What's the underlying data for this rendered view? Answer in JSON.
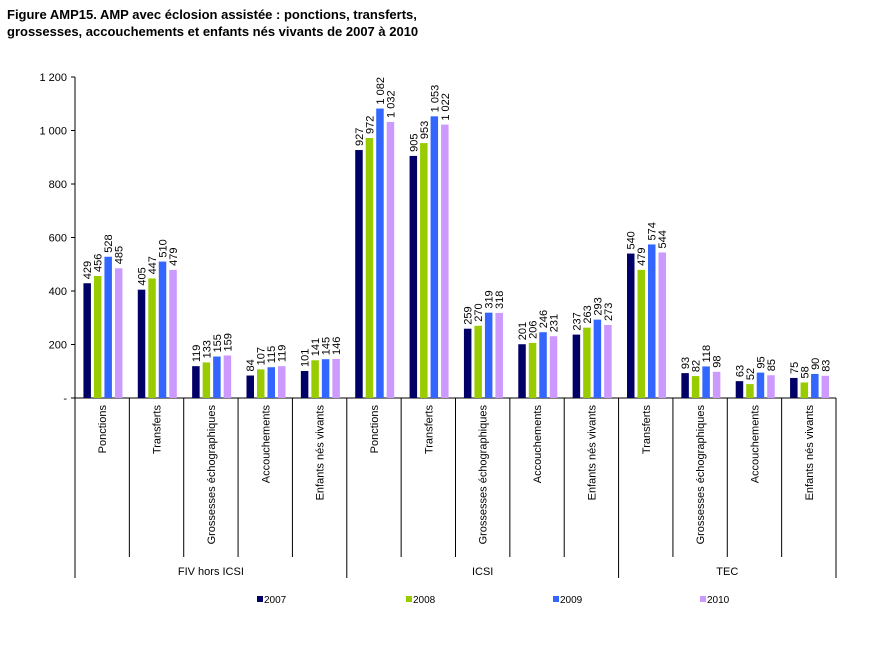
{
  "title_lines": [
    "Figure AMP15. AMP avec éclosion assistée : ponctions, transferts,",
    "grossesses, accouchements et enfants nés vivants de 2007 à 2010"
  ],
  "colors": {
    "2007": "#000066",
    "2008": "#99CC00",
    "2009": "#3366FF",
    "2010": "#CC99FF"
  },
  "chart_data": {
    "type": "bar",
    "title": "Figure AMP15. AMP avec éclosion assistée : ponctions, transferts, grossesses, accouchements et enfants nés vivants de 2007 à 2010",
    "xlabel": "",
    "ylabel": "",
    "ylim": [
      0,
      1200
    ],
    "yticks": [
      {
        "value": 0,
        "label": "-"
      },
      {
        "value": 200,
        "label": "200"
      },
      {
        "value": 400,
        "label": "400"
      },
      {
        "value": 600,
        "label": "600"
      },
      {
        "value": 800,
        "label": "800"
      },
      {
        "value": 1000,
        "label": "1 000"
      },
      {
        "value": 1200,
        "label": "1 200"
      }
    ],
    "grid": false,
    "legend_position": "bottom",
    "groups": [
      {
        "name": "FIV hors ICSI",
        "categories": [
          "Ponctions",
          "Transferts",
          "Grossesses échographiques",
          "Accouchements",
          "Enfants nés vivants"
        ]
      },
      {
        "name": "ICSI",
        "categories": [
          "Ponctions",
          "Transferts",
          "Grossesses échographiques",
          "Accouchements",
          "Enfants nés vivants"
        ]
      },
      {
        "name": "TEC",
        "categories": [
          "Transferts",
          "Grossesses échographiques",
          "Accouchements",
          "Enfants nés vivants"
        ]
      }
    ],
    "categories": [
      "Ponctions",
      "Transferts",
      "Grossesses échographiques",
      "Accouchements",
      "Enfants nés vivants",
      "Ponctions",
      "Transferts",
      "Grossesses échographiques",
      "Accouchements",
      "Enfants nés vivants",
      "Transferts",
      "Grossesses échographiques",
      "Accouchements",
      "Enfants nés vivants"
    ],
    "series": [
      {
        "name": "2007",
        "values": [
          429,
          405,
          119,
          84,
          101,
          927,
          905,
          259,
          201,
          237,
          540,
          93,
          63,
          75
        ],
        "labels": [
          "429",
          "405",
          "119",
          "84",
          "101",
          "927",
          "905",
          "259",
          "201",
          "237",
          "540",
          "93",
          "63",
          "75"
        ]
      },
      {
        "name": "2008",
        "values": [
          456,
          447,
          133,
          107,
          141,
          972,
          953,
          270,
          206,
          263,
          479,
          82,
          52,
          58
        ],
        "labels": [
          "456",
          "447",
          "133",
          "107",
          "141",
          "972",
          "953",
          "270",
          "206",
          "263",
          "479",
          "82",
          "52",
          "58"
        ]
      },
      {
        "name": "2009",
        "values": [
          528,
          510,
          155,
          115,
          145,
          1082,
          1053,
          319,
          246,
          293,
          574,
          118,
          95,
          90
        ],
        "labels": [
          "528",
          "510",
          "155",
          "115",
          "145",
          "1 082",
          "1 053",
          "319",
          "246",
          "293",
          "574",
          "118",
          "95",
          "90"
        ]
      },
      {
        "name": "2010",
        "values": [
          485,
          479,
          159,
          119,
          146,
          1032,
          1022,
          318,
          231,
          273,
          544,
          98,
          85,
          83
        ],
        "labels": [
          "485",
          "479",
          "159",
          "119",
          "146",
          "1 032",
          "1 022",
          "318",
          "231",
          "273",
          "544",
          "98",
          "85",
          "83"
        ]
      }
    ]
  }
}
